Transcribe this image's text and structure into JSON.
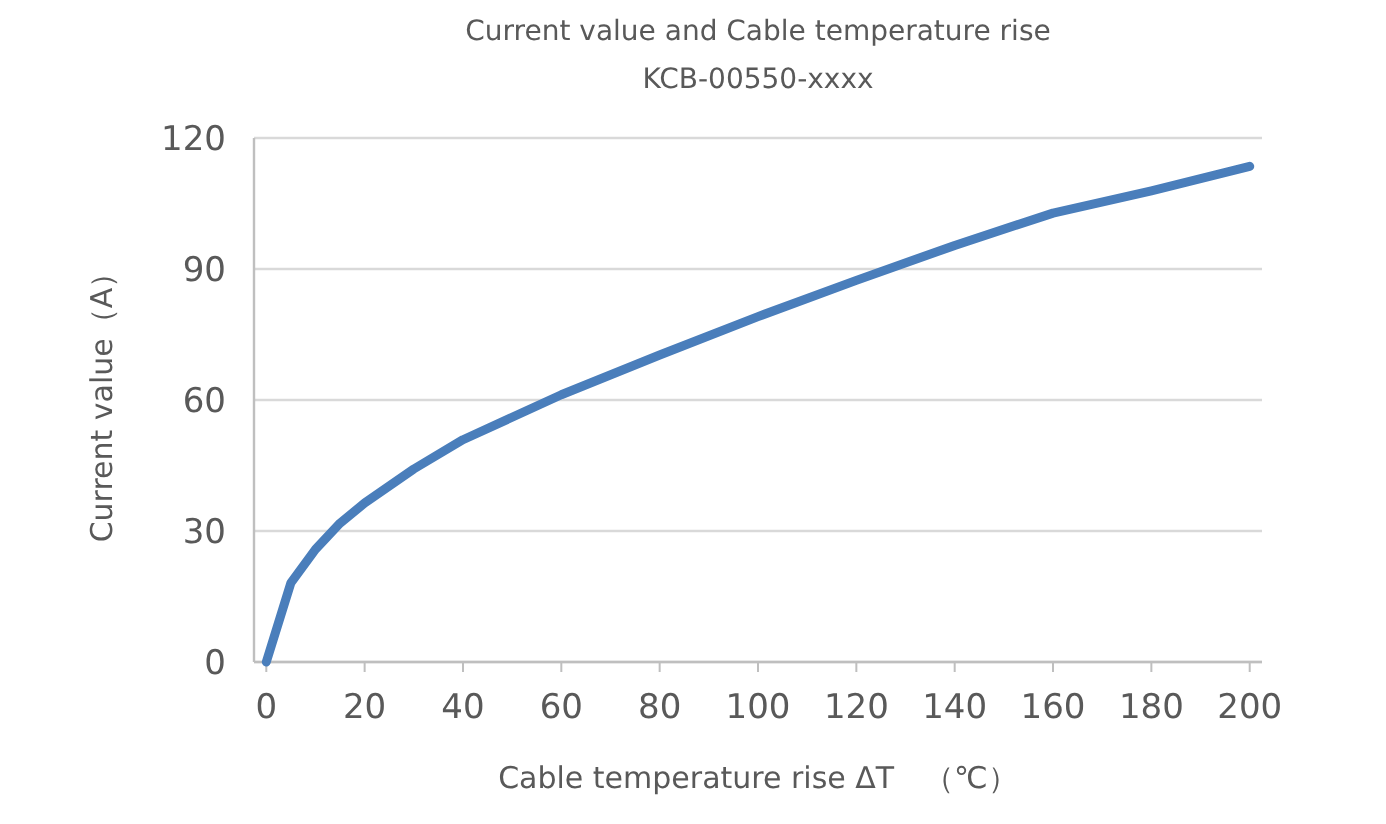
{
  "chart_data": {
    "type": "line",
    "title": "Current value and Cable temperature rise",
    "subtitle": "KCB-00550-xxxx",
    "xlabel": "Cable temperature rise ΔT　（℃）",
    "ylabel": "Current value（A）",
    "x": [
      0,
      5,
      10,
      15,
      20,
      30,
      40,
      60,
      80,
      100,
      120,
      140,
      160,
      180,
      200
    ],
    "series": [
      {
        "color": "#4a7ebb",
        "values": [
          0,
          18.1,
          25.8,
          31.8,
          36.4,
          44.2,
          50.9,
          61.2,
          70.3,
          79.1,
          87.4,
          95.4,
          102.8,
          107.9,
          113.5
        ]
      }
    ],
    "xlim": [
      -2.5,
      202.5
    ],
    "ylim": [
      0,
      120
    ],
    "xticks": [
      0,
      20,
      40,
      60,
      80,
      100,
      120,
      140,
      160,
      180,
      200
    ],
    "yticks": [
      0,
      30,
      60,
      90,
      120
    ],
    "grid": "y"
  }
}
